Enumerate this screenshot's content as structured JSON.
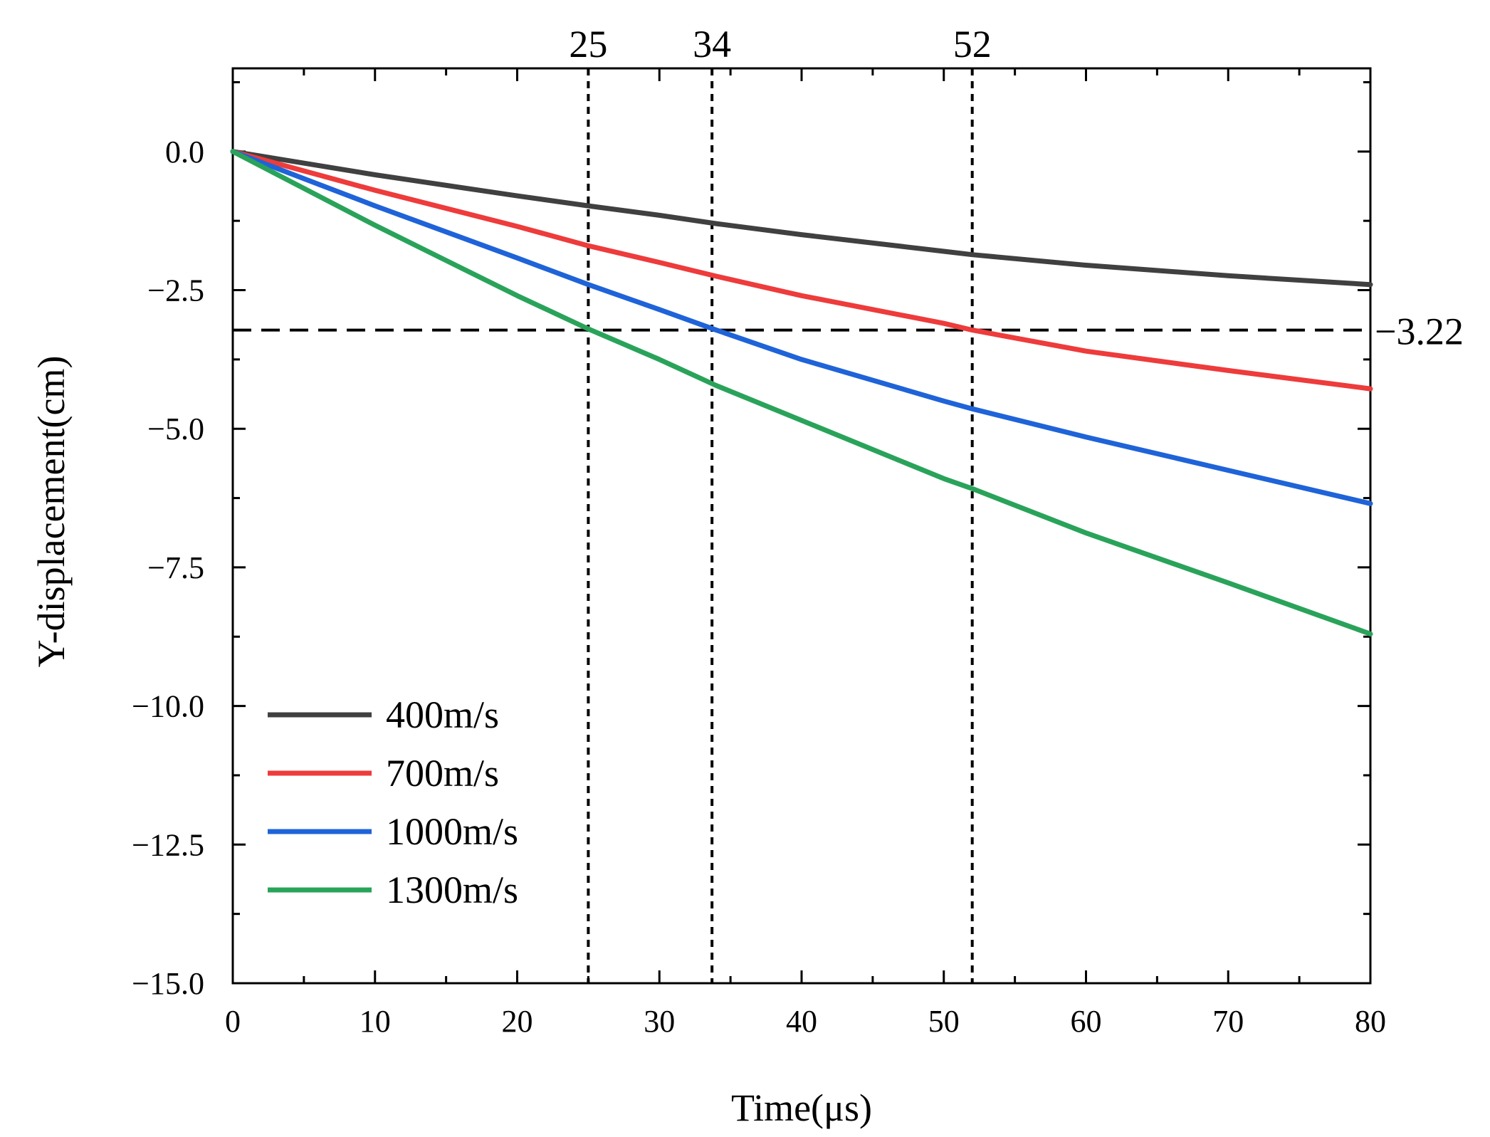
{
  "chart_data": {
    "type": "line",
    "title": "",
    "xlabel": "Time(μs)",
    "ylabel": "Y-displacement(cm)",
    "xlim": [
      0,
      80
    ],
    "ylim": [
      -15,
      1.5
    ],
    "x_ticks": [
      0,
      10,
      20,
      30,
      40,
      50,
      60,
      70,
      80
    ],
    "x_tick_labels": [
      "0",
      "10",
      "20",
      "30",
      "40",
      "50",
      "60",
      "70",
      "80"
    ],
    "y_ticks": [
      0,
      -2.5,
      -5,
      -7.5,
      -10,
      -12.5,
      -15
    ],
    "y_tick_labels": [
      "0.0",
      "−2.5",
      "−5.0",
      "−7.5",
      "−10.0",
      "−12.5",
      "−15.0"
    ],
    "grid": false,
    "legend_position": "lower-left",
    "x": [
      0,
      10,
      20,
      25,
      30,
      34,
      40,
      50,
      52,
      60,
      70,
      80
    ],
    "series": [
      {
        "name": "400m/s",
        "color": "#404040",
        "values": [
          0,
          -0.42,
          -0.8,
          -0.98,
          -1.15,
          -1.3,
          -1.5,
          -1.8,
          -1.86,
          -2.05,
          -2.24,
          -2.4
        ]
      },
      {
        "name": "700m/s",
        "color": "#ee3b3b",
        "values": [
          0,
          -0.7,
          -1.35,
          -1.7,
          -2.0,
          -2.25,
          -2.6,
          -3.1,
          -3.22,
          -3.6,
          -3.95,
          -4.28
        ]
      },
      {
        "name": "1000m/s",
        "color": "#1f63d8",
        "values": [
          0,
          -0.98,
          -1.92,
          -2.4,
          -2.85,
          -3.22,
          -3.75,
          -4.5,
          -4.64,
          -5.15,
          -5.75,
          -6.35
        ]
      },
      {
        "name": "1300m/s",
        "color": "#2aa35a",
        "values": [
          0,
          -1.33,
          -2.6,
          -3.2,
          -3.75,
          -4.22,
          -4.85,
          -5.9,
          -6.08,
          -6.88,
          -7.78,
          -8.7
        ]
      }
    ],
    "reference_lines": {
      "vertical": [
        {
          "x": 25,
          "label": "25"
        },
        {
          "x": 33.7,
          "label": "34"
        },
        {
          "x": 52,
          "label": "52"
        }
      ],
      "horizontal": [
        {
          "y": -3.22,
          "label": "−3.22"
        }
      ]
    }
  }
}
